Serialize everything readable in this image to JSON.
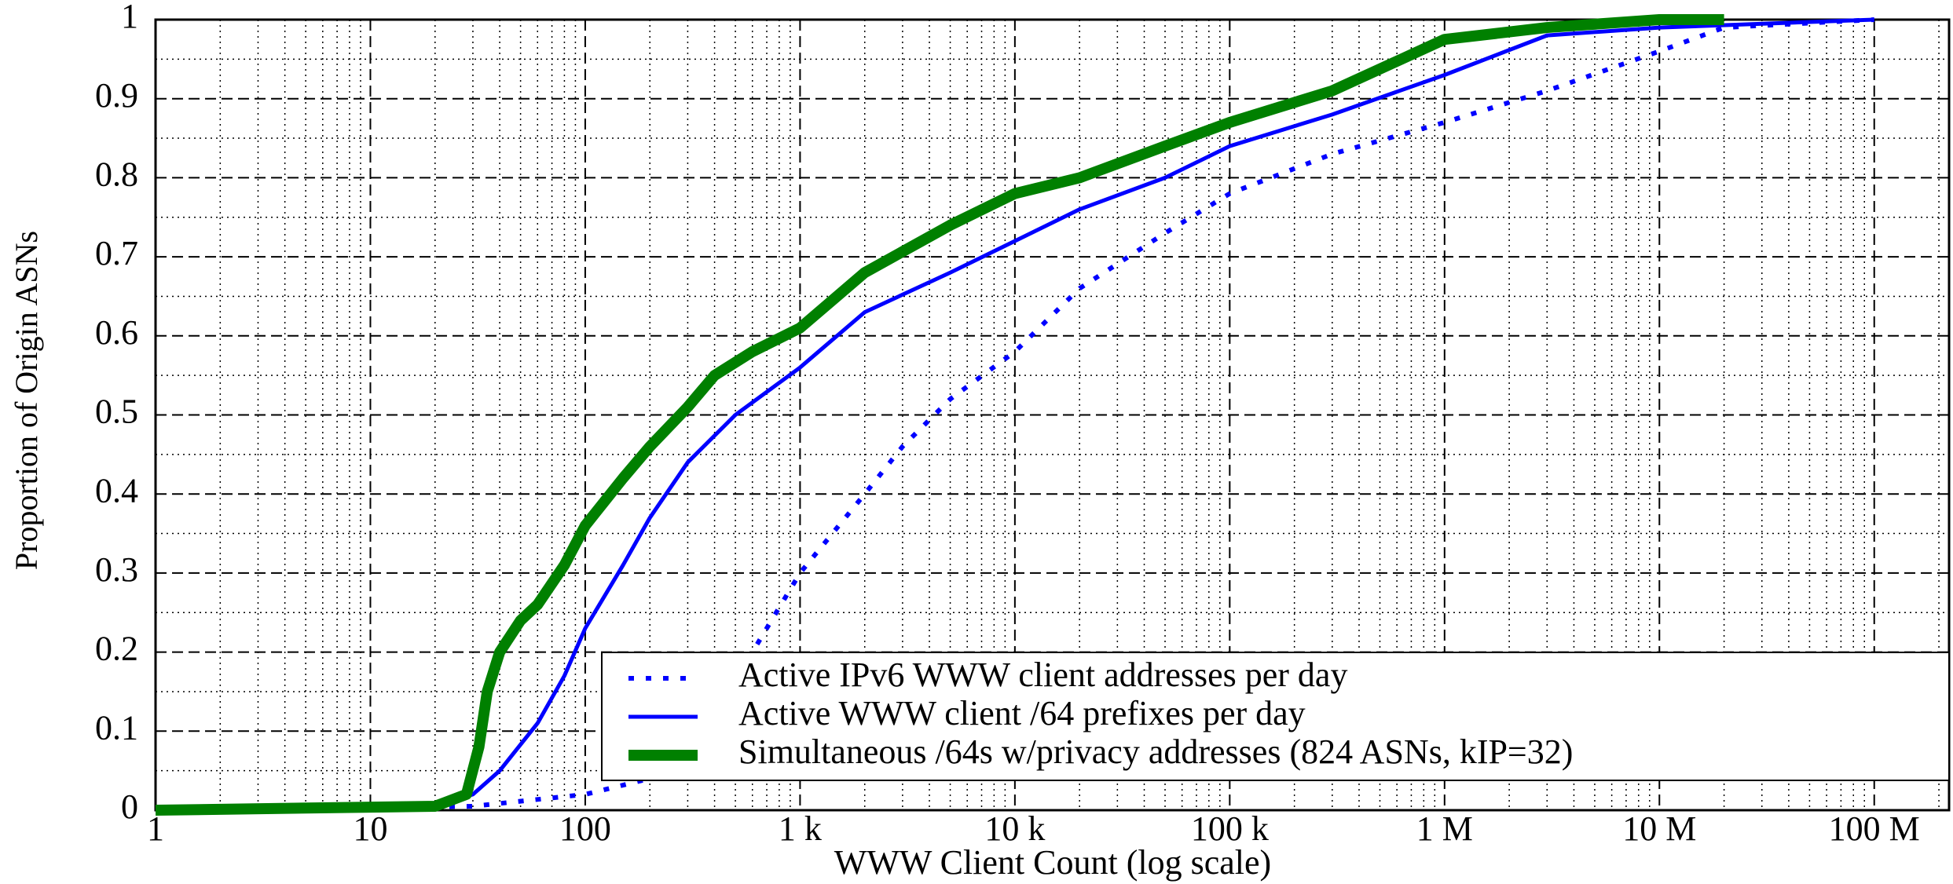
{
  "chart_data": {
    "type": "line",
    "xlabel": "WWW Client Count (log scale)",
    "ylabel": "Proportion of Origin ASNs",
    "xscale": "log",
    "grid": true,
    "minor_grid": true,
    "legend": "lower right",
    "xlim": [
      1,
      223000000
    ],
    "ylim": [
      0,
      1
    ],
    "xticks": [
      1,
      10,
      100,
      {
        "value": 1000,
        "label": "1 k"
      },
      {
        "value": 10000,
        "label": "10 k"
      },
      {
        "value": 100000,
        "label": "100 k"
      },
      {
        "value": 1000000,
        "label": "1 M"
      },
      {
        "value": 10000000,
        "label": "10 M"
      },
      {
        "value": 100000000,
        "label": "100 M"
      }
    ],
    "yticks": [
      0,
      0.1,
      0.2,
      0.3,
      0.4,
      0.5,
      0.6,
      0.7,
      0.8,
      0.9,
      1
    ],
    "series": [
      {
        "name": "Active IPv6 WWW client addresses per day",
        "color": "#0000ff",
        "style": "dotted",
        "x": [
          1,
          30,
          100,
          200,
          400,
          600,
          1000,
          2000,
          3000,
          5000,
          10000,
          20000,
          50000,
          100000,
          300000,
          1000000,
          3000000,
          10000000,
          20000000,
          100000000
        ],
        "values": [
          0,
          0.005,
          0.02,
          0.04,
          0.1,
          0.2,
          0.3,
          0.4,
          0.46,
          0.52,
          0.58,
          0.66,
          0.73,
          0.78,
          0.83,
          0.87,
          0.91,
          0.96,
          0.99,
          1
        ]
      },
      {
        "name": "Active WWW client /64 prefixes per day",
        "color": "#0000ff",
        "style": "solid",
        "x": [
          1,
          20,
          30,
          40,
          60,
          80,
          100,
          150,
          200,
          300,
          500,
          1000,
          2000,
          5000,
          10000,
          20000,
          50000,
          100000,
          300000,
          1000000,
          3000000,
          10000000,
          100000000
        ],
        "values": [
          0,
          0.005,
          0.02,
          0.05,
          0.11,
          0.17,
          0.23,
          0.31,
          0.37,
          0.44,
          0.5,
          0.56,
          0.63,
          0.68,
          0.72,
          0.76,
          0.8,
          0.84,
          0.88,
          0.93,
          0.98,
          0.99,
          1
        ]
      },
      {
        "name": "Simultaneous /64s w/privacy addresses (824 ASNs, kIP=32)",
        "color": "#008000",
        "style": "thick",
        "x": [
          1,
          20,
          28,
          32,
          35,
          40,
          50,
          60,
          80,
          100,
          150,
          200,
          300,
          400,
          600,
          1000,
          2000,
          5000,
          10000,
          20000,
          50000,
          100000,
          300000,
          1000000,
          3000000,
          10000000,
          20000000
        ],
        "values": [
          0,
          0.005,
          0.02,
          0.08,
          0.15,
          0.2,
          0.24,
          0.26,
          0.31,
          0.36,
          0.42,
          0.46,
          0.51,
          0.55,
          0.58,
          0.61,
          0.68,
          0.74,
          0.78,
          0.8,
          0.84,
          0.87,
          0.91,
          0.975,
          0.99,
          1,
          1
        ]
      }
    ]
  }
}
